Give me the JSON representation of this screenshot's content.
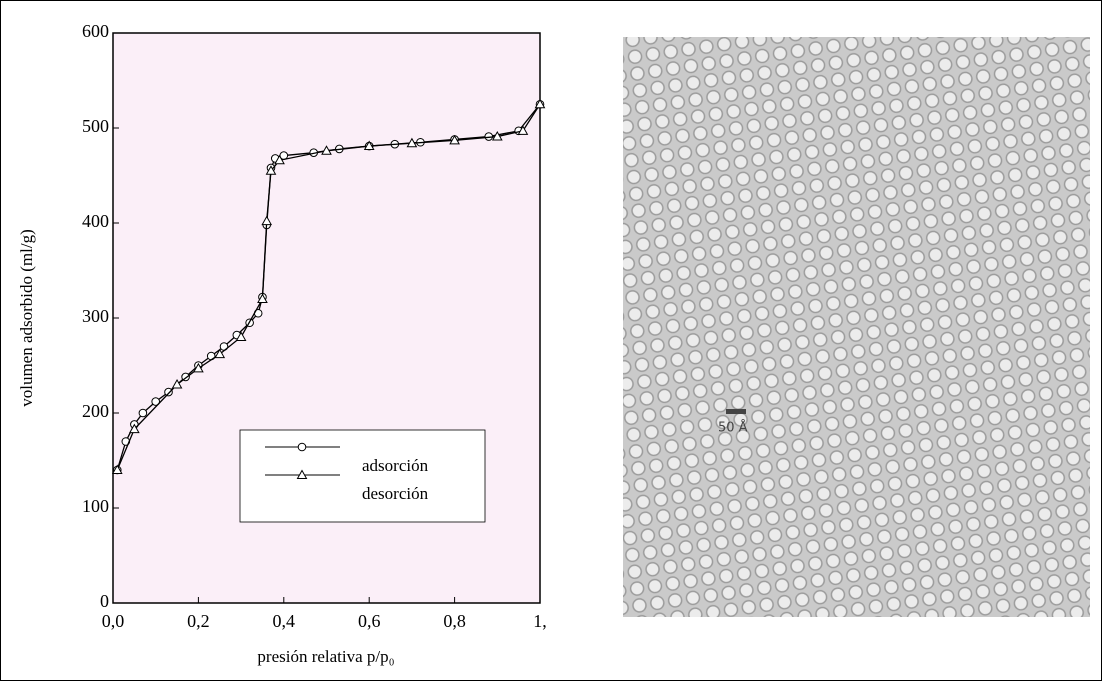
{
  "chart_data": {
    "type": "line",
    "xlabel": "presión relativa p/p₀",
    "ylabel": "volumen adsorbido (ml/g)",
    "xlim": [
      0,
      1
    ],
    "ylim": [
      0,
      600
    ],
    "xticks": [
      {
        "value": 0,
        "label": "0,0"
      },
      {
        "value": 0.2,
        "label": "0,2"
      },
      {
        "value": 0.4,
        "label": "0,4"
      },
      {
        "value": 0.6,
        "label": "0,6"
      },
      {
        "value": 0.8,
        "label": "0,8"
      },
      {
        "value": 1,
        "label": "1,"
      }
    ],
    "yticks": [
      0,
      100,
      200,
      300,
      400,
      500,
      600
    ],
    "legend": "lower right",
    "series": [
      {
        "name": "adsorción",
        "color": "#000000",
        "marker": "circle",
        "x": [
          0.01,
          0.03,
          0.05,
          0.07,
          0.1,
          0.13,
          0.17,
          0.2,
          0.23,
          0.26,
          0.29,
          0.32,
          0.34,
          0.35,
          0.36,
          0.37,
          0.38,
          0.4,
          0.47,
          0.53,
          0.6,
          0.66,
          0.72,
          0.8,
          0.88,
          0.95,
          1.0
        ],
        "values": [
          140,
          170,
          188,
          200,
          212,
          222,
          238,
          250,
          260,
          270,
          282,
          295,
          305,
          322,
          398,
          458,
          468,
          471,
          474,
          478,
          481,
          483,
          485,
          488,
          491,
          497,
          525
        ]
      },
      {
        "name": "desorción",
        "color": "#000000",
        "marker": "triangle",
        "x": [
          0.01,
          0.05,
          0.15,
          0.2,
          0.25,
          0.3,
          0.35,
          0.36,
          0.37,
          0.39,
          0.5,
          0.6,
          0.7,
          0.8,
          0.9,
          0.96,
          1.0
        ],
        "values": [
          140,
          183,
          230,
          247,
          262,
          280,
          320,
          402,
          455,
          466,
          476,
          481,
          484,
          487,
          491,
          497,
          525
        ]
      }
    ]
  },
  "image": {
    "scale_label": "50 Å"
  }
}
